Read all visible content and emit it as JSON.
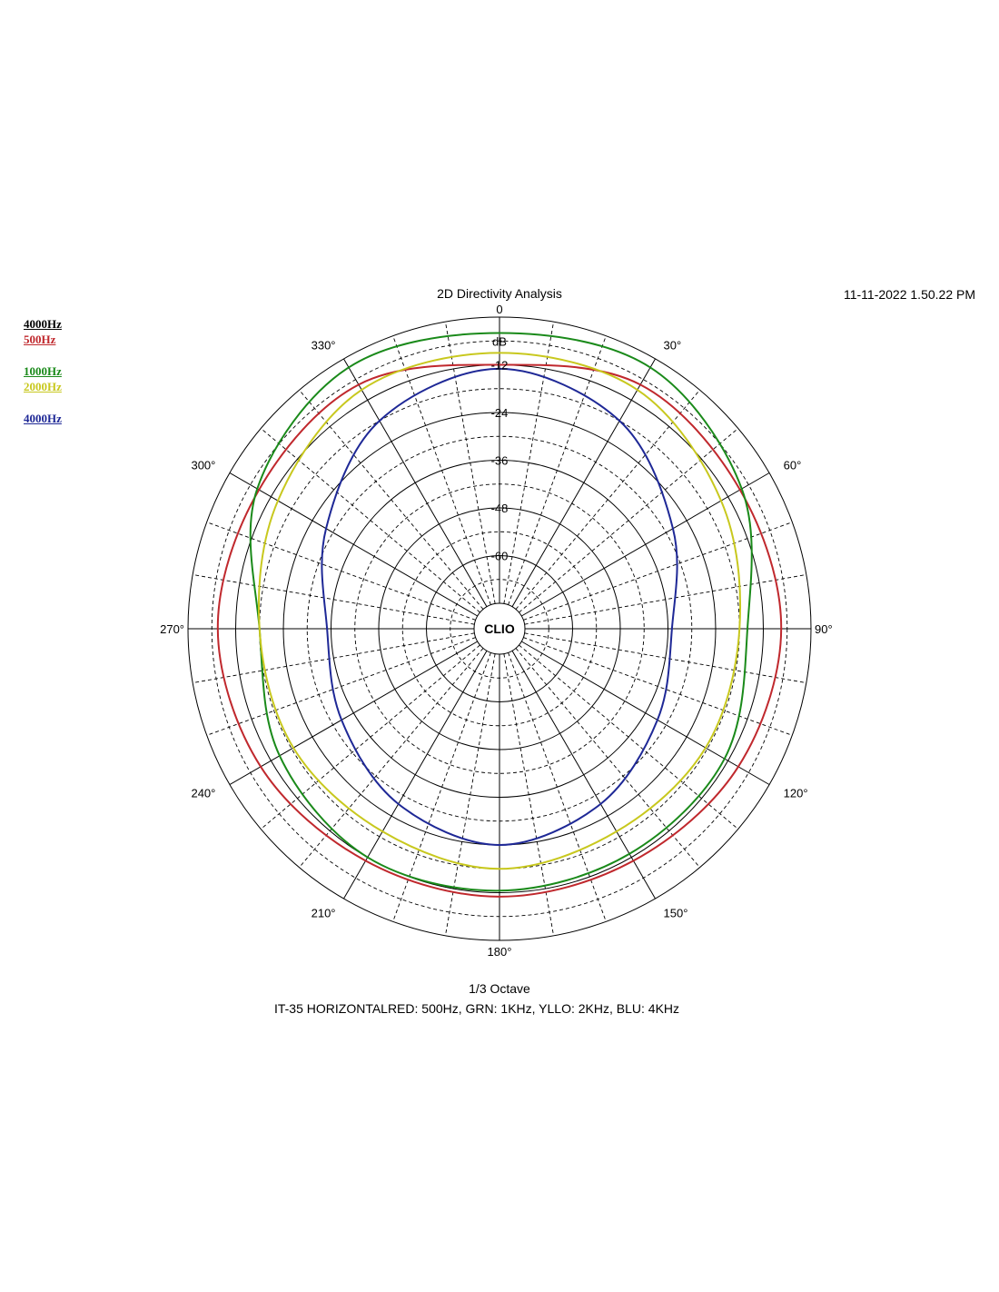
{
  "chart_data": {
    "type": "polar",
    "title": "2D Directivity Analysis",
    "timestamp": "11-11-2022 1.50.22 PM",
    "unit_label": "dB",
    "center_logo": "CLIO",
    "subtitle": "1/3 Octave",
    "footer": "IT-35 HORIZONTALRED: 500Hz, GRN: 1KHz, YLLO: 2KHz, BLU: 4KHz",
    "radial_range": [
      -72,
      0
    ],
    "radial_ticks": [
      {
        "value": 0,
        "label": "0"
      },
      {
        "value": -12,
        "label": "-12"
      },
      {
        "value": -24,
        "label": "-24"
      },
      {
        "value": -36,
        "label": "-36"
      },
      {
        "value": -48,
        "label": "-48"
      },
      {
        "value": -60,
        "label": "-60"
      }
    ],
    "angle_ticks": [
      {
        "angle": 0,
        "label": "0"
      },
      {
        "angle": 30,
        "label": "30°"
      },
      {
        "angle": 60,
        "label": "60°"
      },
      {
        "angle": 90,
        "label": "90°"
      },
      {
        "angle": 120,
        "label": "120°"
      },
      {
        "angle": 150,
        "label": "150°"
      },
      {
        "angle": 180,
        "label": "180°"
      },
      {
        "angle": 210,
        "label": "210°"
      },
      {
        "angle": 240,
        "label": "240°"
      },
      {
        "angle": 270,
        "label": "270°"
      },
      {
        "angle": 300,
        "label": "300°"
      },
      {
        "angle": 330,
        "label": "330°"
      }
    ],
    "legend": [
      {
        "label": "4000Hz",
        "color": "#000000"
      },
      {
        "label": "500Hz",
        "color": "#c0282d"
      },
      {
        "label": "1000Hz",
        "color": "#1a8a1a"
      },
      {
        "label": "2000Hz",
        "color": "#c8c81e"
      },
      {
        "label": "4000Hz",
        "color": "#1e2896"
      }
    ],
    "series": [
      {
        "name": "500Hz",
        "color": "#c0282d",
        "angles": [
          0,
          30,
          60,
          90,
          120,
          150,
          180,
          210,
          240,
          270,
          300,
          330
        ],
        "values": [
          -12,
          -7.5,
          -8.5,
          -7.5,
          -9,
          -11,
          -11,
          -11,
          -9,
          -7.5,
          -8.5,
          -7.5
        ]
      },
      {
        "name": "1000Hz",
        "color": "#1a8a1a",
        "angles": [
          0,
          30,
          60,
          90,
          120,
          150,
          180,
          210,
          240,
          270,
          300,
          330
        ],
        "values": [
          -4,
          -2.5,
          -8,
          -16,
          -13,
          -13,
          -12.5,
          -12,
          -14.5,
          -18,
          -8,
          -2.5
        ]
      },
      {
        "name": "2000Hz",
        "color": "#c8c81e",
        "angles": [
          0,
          30,
          60,
          90,
          120,
          150,
          180,
          210,
          240,
          270,
          300,
          330
        ],
        "values": [
          -9,
          -9,
          -14,
          -18,
          -18.5,
          -19.5,
          -18,
          -19.5,
          -18.5,
          -18,
          -14,
          -9
        ]
      },
      {
        "name": "4000Hz",
        "color": "#1e2896",
        "angles": [
          0,
          30,
          60,
          90,
          120,
          150,
          180,
          210,
          240,
          270,
          300,
          330
        ],
        "values": [
          -13,
          -18,
          -28,
          -35,
          -32.5,
          -27.5,
          -24,
          -27.5,
          -32.5,
          -35,
          -28,
          -18
        ]
      }
    ]
  }
}
